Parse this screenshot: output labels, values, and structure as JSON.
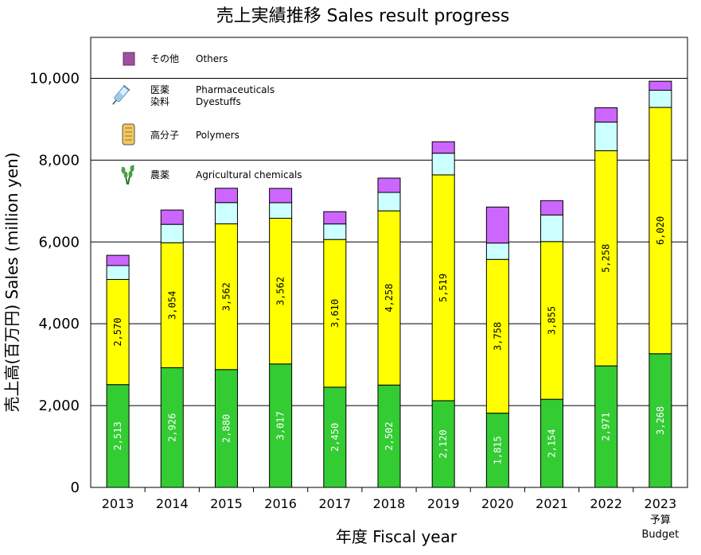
{
  "chart_data": {
    "type": "bar",
    "stacked": true,
    "title": "売上実績推移 Sales result progress",
    "ylabel": "売上高(百万円) Sales (million yen)",
    "xlabel": "年度 Fiscal year",
    "ylim": [
      0,
      11000
    ],
    "yticks": [
      0,
      2000,
      4000,
      6000,
      8000,
      10000
    ],
    "ytick_labels": [
      "0",
      "2,000",
      "4,000",
      "6,000",
      "8,000",
      "10,000"
    ],
    "grid": true,
    "categories": [
      "2013",
      "2014",
      "2015",
      "2016",
      "2017",
      "2018",
      "2019",
      "2020",
      "2021",
      "2022",
      "2023"
    ],
    "category_sublabels": [
      "",
      "",
      "",
      "",
      "",
      "",
      "",
      "",
      "",
      "",
      "予算\nBudget"
    ],
    "series": [
      {
        "name": "農薬 Agricultural chemicals",
        "color": "#33cc33",
        "label_color": "#ffffff",
        "values": [
          2513,
          2926,
          2880,
          3017,
          2450,
          2502,
          2120,
          1815,
          2154,
          2971,
          3268
        ],
        "labels": [
          "2,513",
          "2,926",
          "2,880",
          "3,017",
          "2,450",
          "2,502",
          "2,120",
          "1,815",
          "2,154",
          "2,971",
          "3,268"
        ]
      },
      {
        "name": "高分子 Polymers",
        "color": "#ffff00",
        "label_color": "#000000",
        "values": [
          2570,
          3054,
          3562,
          3562,
          3610,
          4258,
          5519,
          3758,
          3855,
          5258,
          6020
        ],
        "labels": [
          "2,570",
          "3,054",
          "3,562",
          "3,562",
          "3,610",
          "4,258",
          "5,519",
          "3,758",
          "3,855",
          "5,258",
          "6,020"
        ]
      },
      {
        "name": "医薬 染料 Pharmaceuticals Dyestuffs",
        "color": "#ccffff",
        "label_color": "#000000",
        "values": [
          340,
          450,
          520,
          380,
          380,
          450,
          530,
          400,
          650,
          700,
          420
        ],
        "labels": null
      },
      {
        "name": "その他 Others",
        "color": "#cc66ff",
        "label_color": "#000000",
        "values": [
          250,
          350,
          350,
          350,
          300,
          350,
          280,
          880,
          350,
          350,
          220
        ],
        "labels": null
      }
    ],
    "legend": [
      {
        "jp": "その他",
        "en": "Others",
        "icon": "square-swatch-icon",
        "color": "#a050a0"
      },
      {
        "jp": "医薬",
        "en": "Pharmaceuticals",
        "jp2": "染料",
        "en2": "Dyestuffs",
        "icon": "syringe-icon"
      },
      {
        "jp": "高分子",
        "en": "Polymers",
        "icon": "thread-spool-icon"
      },
      {
        "jp": "農薬",
        "en": "Agricultural chemicals",
        "icon": "rice-plant-icon"
      }
    ],
    "legend_position": "top-left"
  }
}
